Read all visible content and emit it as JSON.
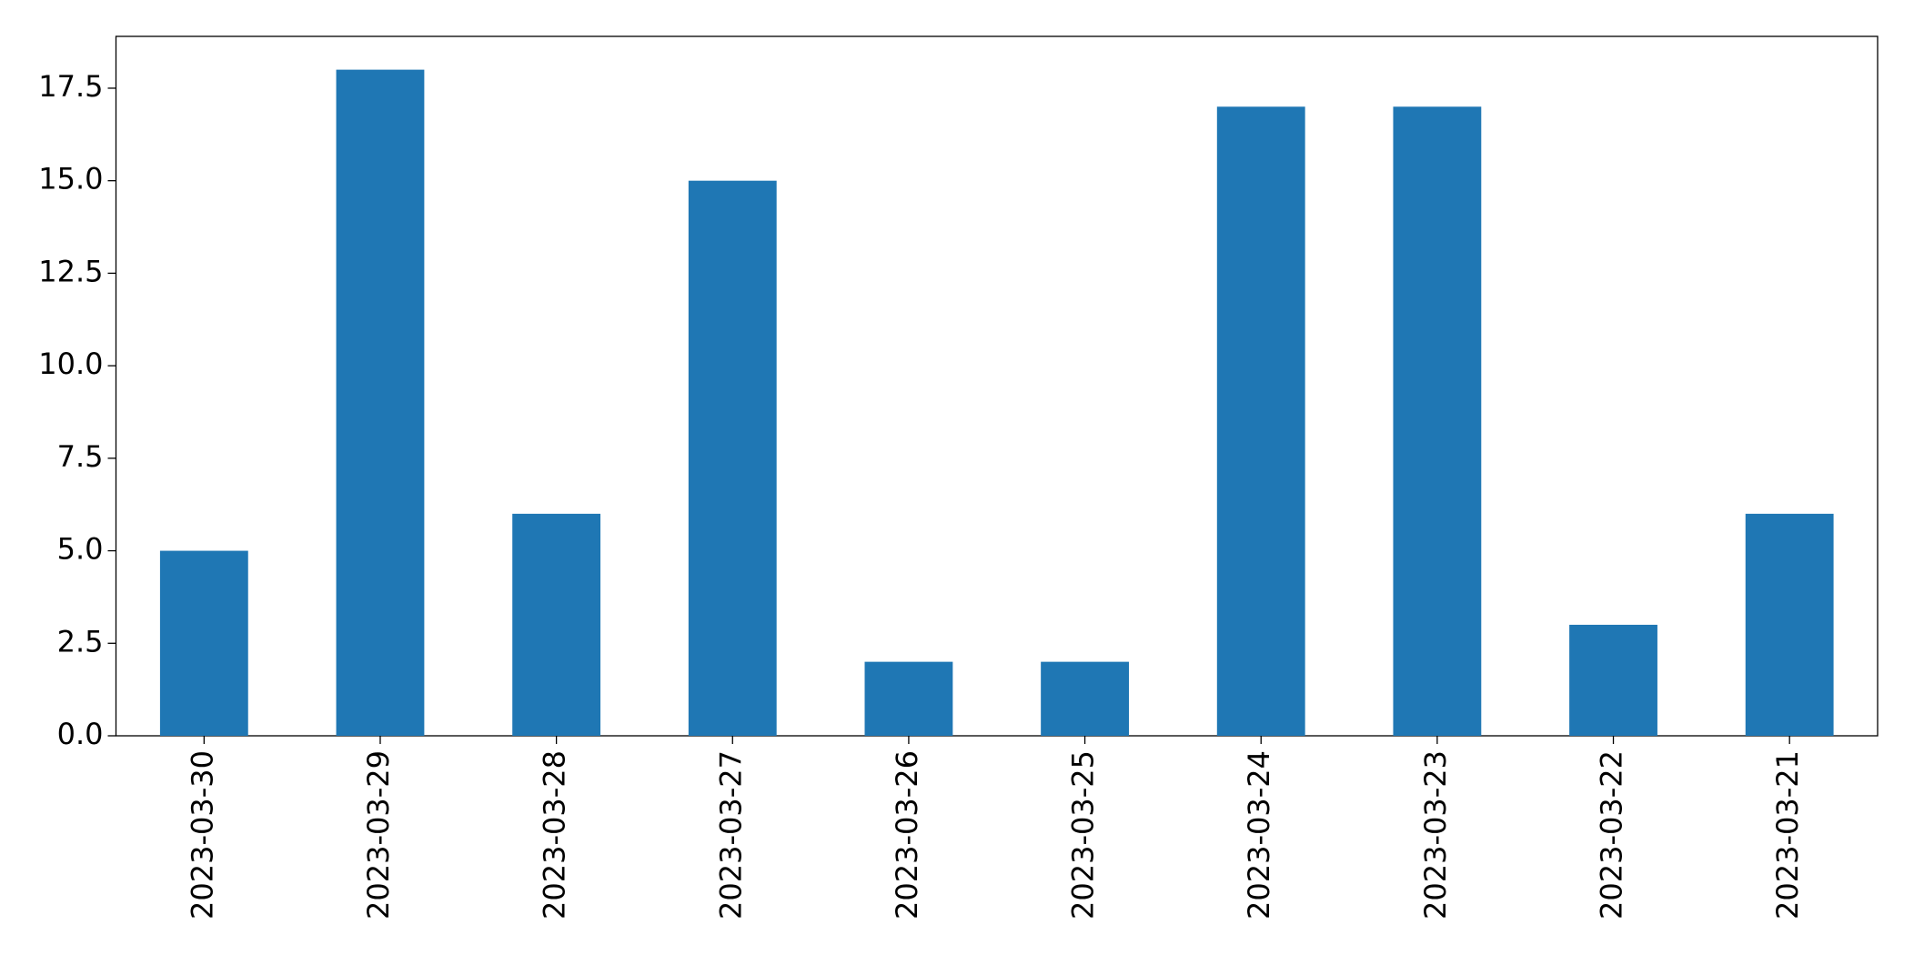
{
  "chart_data": {
    "type": "bar",
    "categories": [
      "2023-03-30",
      "2023-03-29",
      "2023-03-28",
      "2023-03-27",
      "2023-03-26",
      "2023-03-25",
      "2023-03-24",
      "2023-03-23",
      "2023-03-22",
      "2023-03-21"
    ],
    "values": [
      5,
      18,
      6,
      15,
      2,
      2,
      17,
      17,
      3,
      6
    ],
    "color": "#1f77b4",
    "ylim": [
      0,
      18.9
    ],
    "yticks": [
      {
        "value": 0,
        "label": "0.0"
      },
      2.5,
      {
        "value": 5,
        "label": "5.0"
      },
      7.5,
      {
        "value": 10,
        "label": "10.0"
      },
      12.5,
      {
        "value": 15,
        "label": "15.0"
      },
      17.5
    ],
    "grid": false
  }
}
